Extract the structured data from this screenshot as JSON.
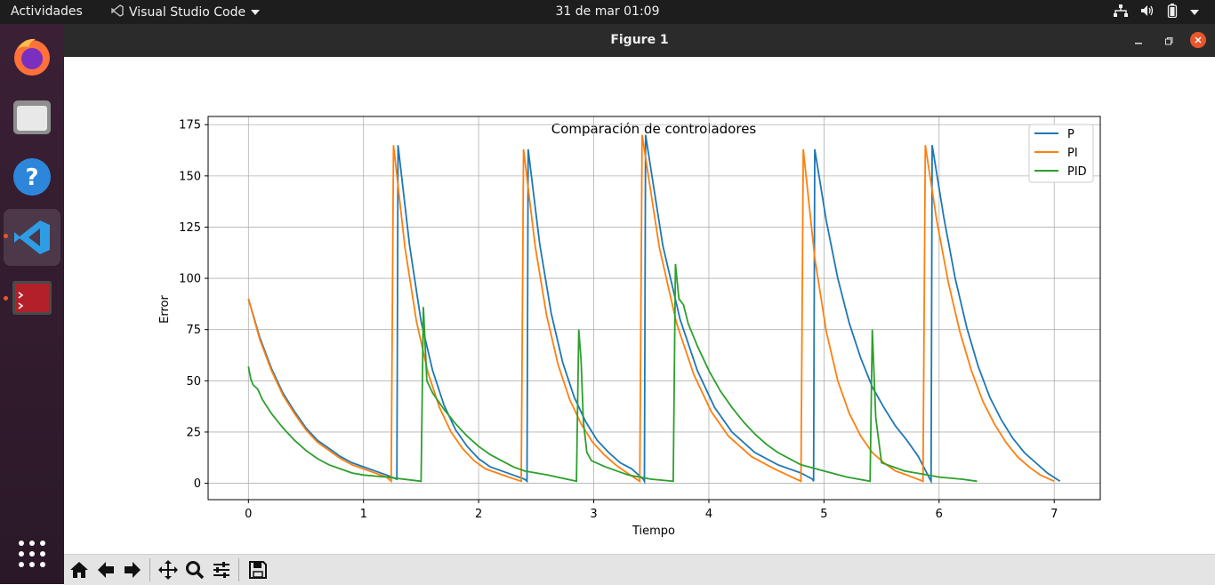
{
  "topbar": {
    "activities": "Actividades",
    "app_name": "Visual Studio Code",
    "clock": "31 de mar  01:09"
  },
  "dock": {
    "items": [
      "firefox-icon",
      "files-icon",
      "help-icon",
      "vscode-icon",
      "terminal-icon",
      "show-apps-icon"
    ]
  },
  "window": {
    "title": "Figure 1"
  },
  "toolbar": {
    "buttons": [
      "home-icon",
      "back-icon",
      "forward-icon",
      "pan-icon",
      "zoom-icon",
      "configure-subplots-icon",
      "save-icon"
    ]
  },
  "colors": {
    "P": "#1f77b4",
    "PI": "#ff7f0e",
    "PID": "#2ca02c"
  },
  "chart_data": {
    "type": "line",
    "title": "Comparación de controladores",
    "xlabel": "Tiempo",
    "ylabel": "Error",
    "xlim": [
      -0.35,
      7.4
    ],
    "ylim": [
      -8,
      179
    ],
    "xticks": [
      0,
      1,
      2,
      3,
      4,
      5,
      6,
      7
    ],
    "yticks": [
      0,
      25,
      50,
      75,
      100,
      125,
      150,
      175
    ],
    "grid": true,
    "legend": "top-right",
    "series": [
      {
        "name": "P",
        "color": "#1f77b4",
        "points": [
          [
            0,
            90
          ],
          [
            0.1,
            71
          ],
          [
            0.2,
            56
          ],
          [
            0.3,
            44
          ],
          [
            0.4,
            35
          ],
          [
            0.5,
            27
          ],
          [
            0.6,
            21
          ],
          [
            0.7,
            17
          ],
          [
            0.8,
            13
          ],
          [
            0.9,
            10
          ],
          [
            1.0,
            8
          ],
          [
            1.1,
            6
          ],
          [
            1.2,
            4
          ],
          [
            1.29,
            2
          ],
          [
            1.3,
            165
          ],
          [
            1.4,
            116
          ],
          [
            1.5,
            79
          ],
          [
            1.6,
            55
          ],
          [
            1.7,
            38
          ],
          [
            1.8,
            26
          ],
          [
            1.9,
            18
          ],
          [
            2.0,
            12
          ],
          [
            2.1,
            8
          ],
          [
            2.2,
            6
          ],
          [
            2.3,
            4
          ],
          [
            2.4,
            2
          ],
          [
            2.42,
            1
          ],
          [
            2.43,
            163
          ],
          [
            2.53,
            117
          ],
          [
            2.63,
            83
          ],
          [
            2.73,
            59
          ],
          [
            2.83,
            42
          ],
          [
            2.93,
            30
          ],
          [
            3.03,
            21
          ],
          [
            3.13,
            15
          ],
          [
            3.23,
            10
          ],
          [
            3.33,
            7
          ],
          [
            3.43,
            2
          ],
          [
            3.44,
            1
          ],
          [
            3.45,
            170
          ],
          [
            3.6,
            116
          ],
          [
            3.75,
            80
          ],
          [
            3.9,
            55
          ],
          [
            4.05,
            37
          ],
          [
            4.2,
            25
          ],
          [
            4.4,
            15
          ],
          [
            4.6,
            9
          ],
          [
            4.8,
            5
          ],
          [
            4.9,
            2
          ],
          [
            4.91,
            1
          ],
          [
            4.92,
            163
          ],
          [
            5.02,
            128
          ],
          [
            5.12,
            100
          ],
          [
            5.22,
            78
          ],
          [
            5.32,
            61
          ],
          [
            5.42,
            47
          ],
          [
            5.52,
            37
          ],
          [
            5.62,
            28
          ],
          [
            5.72,
            21
          ],
          [
            5.82,
            13
          ],
          [
            5.92,
            2
          ],
          [
            5.93,
            1
          ],
          [
            5.94,
            165
          ],
          [
            6.04,
            130
          ],
          [
            6.14,
            100
          ],
          [
            6.24,
            76
          ],
          [
            6.34,
            57
          ],
          [
            6.44,
            42
          ],
          [
            6.54,
            31
          ],
          [
            6.64,
            22
          ],
          [
            6.74,
            15
          ],
          [
            6.84,
            10
          ],
          [
            6.94,
            5
          ],
          [
            7.05,
            1
          ]
        ]
      },
      {
        "name": "PI",
        "color": "#ff7f0e",
        "points": [
          [
            0,
            90
          ],
          [
            0.1,
            70
          ],
          [
            0.2,
            55
          ],
          [
            0.3,
            43
          ],
          [
            0.4,
            34
          ],
          [
            0.5,
            26
          ],
          [
            0.6,
            20
          ],
          [
            0.7,
            16
          ],
          [
            0.8,
            12
          ],
          [
            0.9,
            9
          ],
          [
            1.0,
            7
          ],
          [
            1.1,
            5
          ],
          [
            1.2,
            3
          ],
          [
            1.24,
            1
          ],
          [
            1.26,
            165
          ],
          [
            1.36,
            115
          ],
          [
            1.46,
            79
          ],
          [
            1.56,
            54
          ],
          [
            1.66,
            37
          ],
          [
            1.76,
            25
          ],
          [
            1.86,
            17
          ],
          [
            1.96,
            11
          ],
          [
            2.06,
            7
          ],
          [
            2.16,
            5
          ],
          [
            2.26,
            3
          ],
          [
            2.37,
            1
          ],
          [
            2.39,
            163
          ],
          [
            2.49,
            116
          ],
          [
            2.59,
            82
          ],
          [
            2.69,
            58
          ],
          [
            2.79,
            41
          ],
          [
            2.89,
            29
          ],
          [
            2.99,
            20
          ],
          [
            3.09,
            14
          ],
          [
            3.19,
            9
          ],
          [
            3.29,
            5
          ],
          [
            3.4,
            1
          ],
          [
            3.42,
            170
          ],
          [
            3.57,
            115
          ],
          [
            3.72,
            78
          ],
          [
            3.87,
            53
          ],
          [
            4.02,
            35
          ],
          [
            4.17,
            23
          ],
          [
            4.37,
            13
          ],
          [
            4.57,
            7
          ],
          [
            4.72,
            3
          ],
          [
            4.8,
            1
          ],
          [
            4.82,
            163
          ],
          [
            4.92,
            110
          ],
          [
            5.02,
            74
          ],
          [
            5.12,
            50
          ],
          [
            5.22,
            34
          ],
          [
            5.32,
            23
          ],
          [
            5.42,
            15
          ],
          [
            5.52,
            10
          ],
          [
            5.62,
            6
          ],
          [
            5.72,
            4
          ],
          [
            5.86,
            1
          ],
          [
            5.88,
            165
          ],
          [
            5.98,
            128
          ],
          [
            6.08,
            98
          ],
          [
            6.18,
            74
          ],
          [
            6.28,
            55
          ],
          [
            6.38,
            40
          ],
          [
            6.48,
            29
          ],
          [
            6.58,
            20
          ],
          [
            6.68,
            13
          ],
          [
            6.78,
            8
          ],
          [
            6.88,
            4
          ],
          [
            7.0,
            1
          ]
        ]
      },
      {
        "name": "PID",
        "color": "#2ca02c",
        "points": [
          [
            0,
            57
          ],
          [
            0.02,
            51
          ],
          [
            0.04,
            48
          ],
          [
            0.08,
            46
          ],
          [
            0.12,
            41
          ],
          [
            0.2,
            34
          ],
          [
            0.3,
            27
          ],
          [
            0.4,
            21
          ],
          [
            0.5,
            16
          ],
          [
            0.6,
            12
          ],
          [
            0.7,
            9
          ],
          [
            0.8,
            7
          ],
          [
            0.9,
            5
          ],
          [
            1.0,
            4
          ],
          [
            1.2,
            3
          ],
          [
            1.5,
            1
          ],
          [
            1.52,
            86
          ],
          [
            1.55,
            50
          ],
          [
            1.6,
            44
          ],
          [
            1.7,
            36
          ],
          [
            1.8,
            29
          ],
          [
            1.9,
            23
          ],
          [
            2.0,
            18
          ],
          [
            2.1,
            14
          ],
          [
            2.2,
            11
          ],
          [
            2.3,
            8
          ],
          [
            2.4,
            6
          ],
          [
            2.6,
            4
          ],
          [
            2.85,
            1
          ],
          [
            2.87,
            75
          ],
          [
            2.89,
            60
          ],
          [
            2.91,
            30
          ],
          [
            2.94,
            15
          ],
          [
            2.98,
            11
          ],
          [
            3.1,
            8
          ],
          [
            3.2,
            6
          ],
          [
            3.3,
            4
          ],
          [
            3.5,
            2
          ],
          [
            3.69,
            1
          ],
          [
            3.71,
            107
          ],
          [
            3.74,
            90
          ],
          [
            3.78,
            87
          ],
          [
            3.82,
            78
          ],
          [
            3.9,
            67
          ],
          [
            4.0,
            55
          ],
          [
            4.1,
            45
          ],
          [
            4.2,
            37
          ],
          [
            4.3,
            30
          ],
          [
            4.4,
            24
          ],
          [
            4.5,
            19
          ],
          [
            4.6,
            15
          ],
          [
            4.7,
            12
          ],
          [
            4.8,
            9
          ],
          [
            5.0,
            6
          ],
          [
            5.2,
            3
          ],
          [
            5.4,
            1
          ],
          [
            5.42,
            75
          ],
          [
            5.45,
            32
          ],
          [
            5.5,
            10
          ],
          [
            5.6,
            8
          ],
          [
            5.7,
            6
          ],
          [
            5.8,
            5
          ],
          [
            5.9,
            4
          ],
          [
            6.0,
            3
          ],
          [
            6.2,
            2
          ],
          [
            6.33,
            1
          ]
        ]
      }
    ]
  }
}
